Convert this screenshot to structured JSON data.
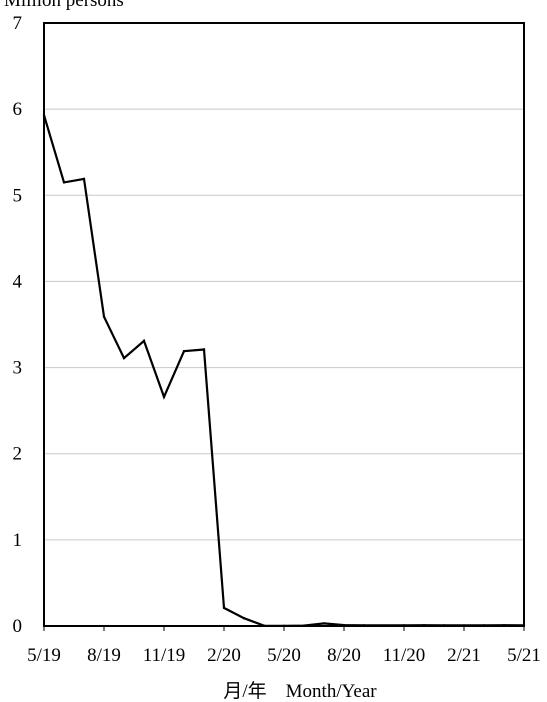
{
  "chart_data": {
    "type": "line",
    "ylabel": "Million persons",
    "xlabel": "月/年　Month/Year",
    "ylim": [
      0,
      7
    ],
    "yticks": [
      0,
      1,
      2,
      3,
      4,
      5,
      6,
      7
    ],
    "grid": "horizontal",
    "legend": "none",
    "x_tick_labels": [
      "5/19",
      "8/19",
      "11/19",
      "2/20",
      "5/20",
      "8/20",
      "11/20",
      "2/21",
      "5/21"
    ],
    "x": [
      "5/19",
      "6/19",
      "7/19",
      "8/19",
      "9/19",
      "10/19",
      "11/19",
      "12/19",
      "1/20",
      "2/20",
      "3/20",
      "4/20",
      "5/20",
      "6/20",
      "7/20",
      "8/20",
      "9/20",
      "10/20",
      "11/20",
      "12/20",
      "1/21",
      "2/21",
      "3/21",
      "4/21",
      "5/21"
    ],
    "series": [
      {
        "color": "#000000",
        "values": [
          5.93,
          5.15,
          5.19,
          3.59,
          3.11,
          3.31,
          2.66,
          3.19,
          3.21,
          0.21,
          0.09,
          0.003,
          0.002,
          0.005,
          0.03,
          0.01,
          0.008,
          0.007,
          0.008,
          0.009,
          0.008,
          0.007,
          0.008,
          0.009,
          0.008
        ]
      }
    ]
  }
}
